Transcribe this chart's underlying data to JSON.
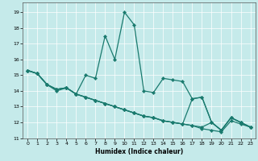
{
  "xlabel": "Humidex (Indice chaleur)",
  "bg_color": "#c5eaea",
  "grid_color": "#ffffff",
  "line_color": "#1a7a6e",
  "xlim": [
    -0.5,
    23.5
  ],
  "ylim": [
    11,
    19.6
  ],
  "yticks": [
    11,
    12,
    13,
    14,
    15,
    16,
    17,
    18,
    19
  ],
  "xticks": [
    0,
    1,
    2,
    3,
    4,
    5,
    6,
    7,
    8,
    9,
    10,
    11,
    12,
    13,
    14,
    15,
    16,
    17,
    18,
    19,
    20,
    21,
    22,
    23
  ],
  "line1": [
    15.3,
    15.1,
    14.4,
    14.0,
    14.2,
    13.8,
    15.0,
    14.8,
    17.5,
    16.0,
    19.0,
    18.2,
    14.0,
    13.9,
    14.8,
    14.7,
    14.6,
    13.5,
    13.6,
    12.0,
    11.5,
    12.3,
    12.0,
    11.7
  ],
  "line2": [
    15.3,
    15.1,
    14.4,
    14.1,
    14.2,
    13.8,
    13.6,
    13.4,
    13.2,
    13.0,
    12.8,
    12.6,
    12.4,
    12.3,
    12.1,
    12.0,
    11.9,
    13.5,
    13.6,
    12.0,
    11.5,
    12.3,
    12.0,
    11.7
  ],
  "line3": [
    15.3,
    15.1,
    14.4,
    14.1,
    14.2,
    13.8,
    13.6,
    13.4,
    13.2,
    13.0,
    12.8,
    12.6,
    12.4,
    12.3,
    12.1,
    12.0,
    11.9,
    11.8,
    11.7,
    12.0,
    11.5,
    12.3,
    12.0,
    11.7
  ],
  "line4": [
    15.3,
    15.1,
    14.4,
    14.1,
    14.2,
    13.8,
    13.6,
    13.4,
    13.2,
    13.0,
    12.8,
    12.6,
    12.4,
    12.3,
    12.1,
    12.0,
    11.9,
    11.8,
    11.6,
    11.5,
    11.4,
    12.1,
    11.9,
    11.7
  ]
}
